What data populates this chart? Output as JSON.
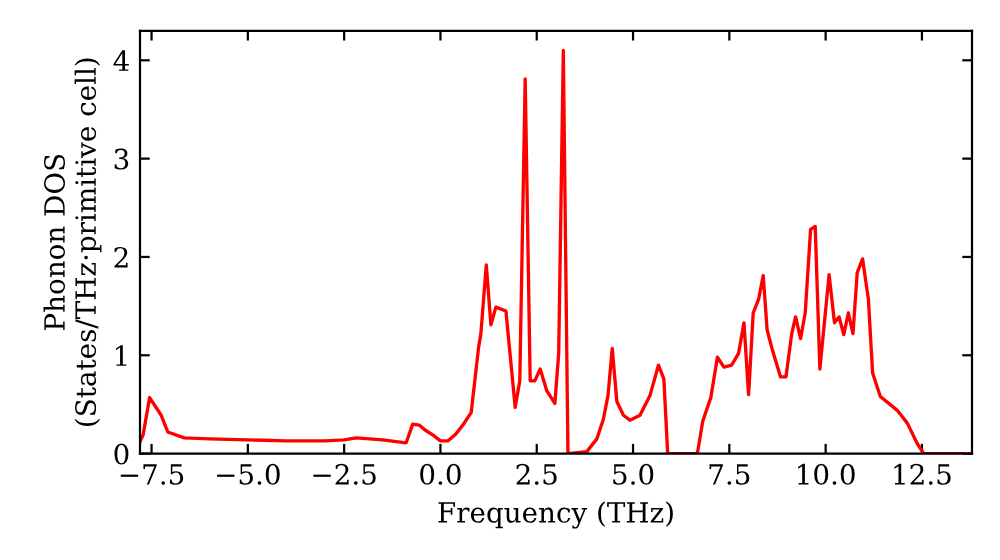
{
  "chart_data": {
    "type": "line",
    "xlabel": "Frequency (THz)",
    "ylabel": "Phonon DOS\n(States/THz·primitive cell)",
    "xlim": [
      -7.8,
      13.8
    ],
    "ylim": [
      0,
      4.3
    ],
    "xticks": [
      {
        "value": -7.5,
        "label": "−7.5"
      },
      {
        "value": -5,
        "label": "−5.0"
      },
      {
        "value": -2.5,
        "label": "−2.5"
      },
      {
        "value": 0,
        "label": "0.0"
      },
      {
        "value": 2.5,
        "label": "2.5"
      },
      {
        "value": 5,
        "label": "5.0"
      },
      {
        "value": 7.5,
        "label": "7.5"
      },
      {
        "value": 10,
        "label": "10.0"
      },
      {
        "value": 12.5,
        "label": "12.5"
      }
    ],
    "yticks": [
      0,
      1,
      2,
      3,
      4
    ],
    "grid": false,
    "legend": false,
    "marker": "none",
    "line_style": "solid",
    "series": [
      {
        "color": "#ff0000",
        "x": [
          -7.8,
          -7.72,
          -7.55,
          -7.25,
          -7.08,
          -6.65,
          -6.0,
          -5.0,
          -4.0,
          -3.0,
          -2.5,
          -2.19,
          -1.5,
          -0.89,
          -0.72,
          -0.55,
          -0.4,
          -0.2,
          0.0,
          0.2,
          0.4,
          0.6,
          0.8,
          0.99,
          1.05,
          1.19,
          1.31,
          1.44,
          1.7,
          1.94,
          2.06,
          2.2,
          2.33,
          2.45,
          2.59,
          2.76,
          2.97,
          3.07,
          3.19,
          3.31,
          3.8,
          4.06,
          4.23,
          4.35,
          4.46,
          4.58,
          4.75,
          4.92,
          5.18,
          5.44,
          5.66,
          5.8,
          5.9,
          6.56,
          6.67,
          6.81,
          7.02,
          7.19,
          7.36,
          7.56,
          7.74,
          7.88,
          8.0,
          8.12,
          8.26,
          8.38,
          8.48,
          8.62,
          8.83,
          8.97,
          9.12,
          9.22,
          9.35,
          9.47,
          9.61,
          9.73,
          9.85,
          10.09,
          10.23,
          10.35,
          10.47,
          10.59,
          10.71,
          10.82,
          10.96,
          11.11,
          11.22,
          11.42,
          11.86,
          12.12,
          12.38,
          12.55,
          13.8
        ],
        "values": [
          0.12,
          0.19,
          0.57,
          0.39,
          0.22,
          0.16,
          0.15,
          0.14,
          0.13,
          0.13,
          0.14,
          0.16,
          0.14,
          0.11,
          0.3,
          0.29,
          0.24,
          0.19,
          0.13,
          0.13,
          0.2,
          0.3,
          0.42,
          1.08,
          1.22,
          1.92,
          1.31,
          1.49,
          1.45,
          0.47,
          0.74,
          3.81,
          0.74,
          0.74,
          0.86,
          0.64,
          0.51,
          1.02,
          4.1,
          0.0,
          0.02,
          0.15,
          0.35,
          0.59,
          1.07,
          0.53,
          0.39,
          0.34,
          0.39,
          0.59,
          0.9,
          0.76,
          0.0,
          0.0,
          0.0,
          0.33,
          0.57,
          0.98,
          0.88,
          0.9,
          1.02,
          1.33,
          0.6,
          1.43,
          1.57,
          1.81,
          1.26,
          1.05,
          0.78,
          0.78,
          1.22,
          1.39,
          1.17,
          1.43,
          2.28,
          2.31,
          0.86,
          1.82,
          1.33,
          1.39,
          1.21,
          1.43,
          1.22,
          1.84,
          1.98,
          1.57,
          0.82,
          0.58,
          0.44,
          0.31,
          0.1,
          0.0,
          0.0
        ]
      }
    ]
  }
}
